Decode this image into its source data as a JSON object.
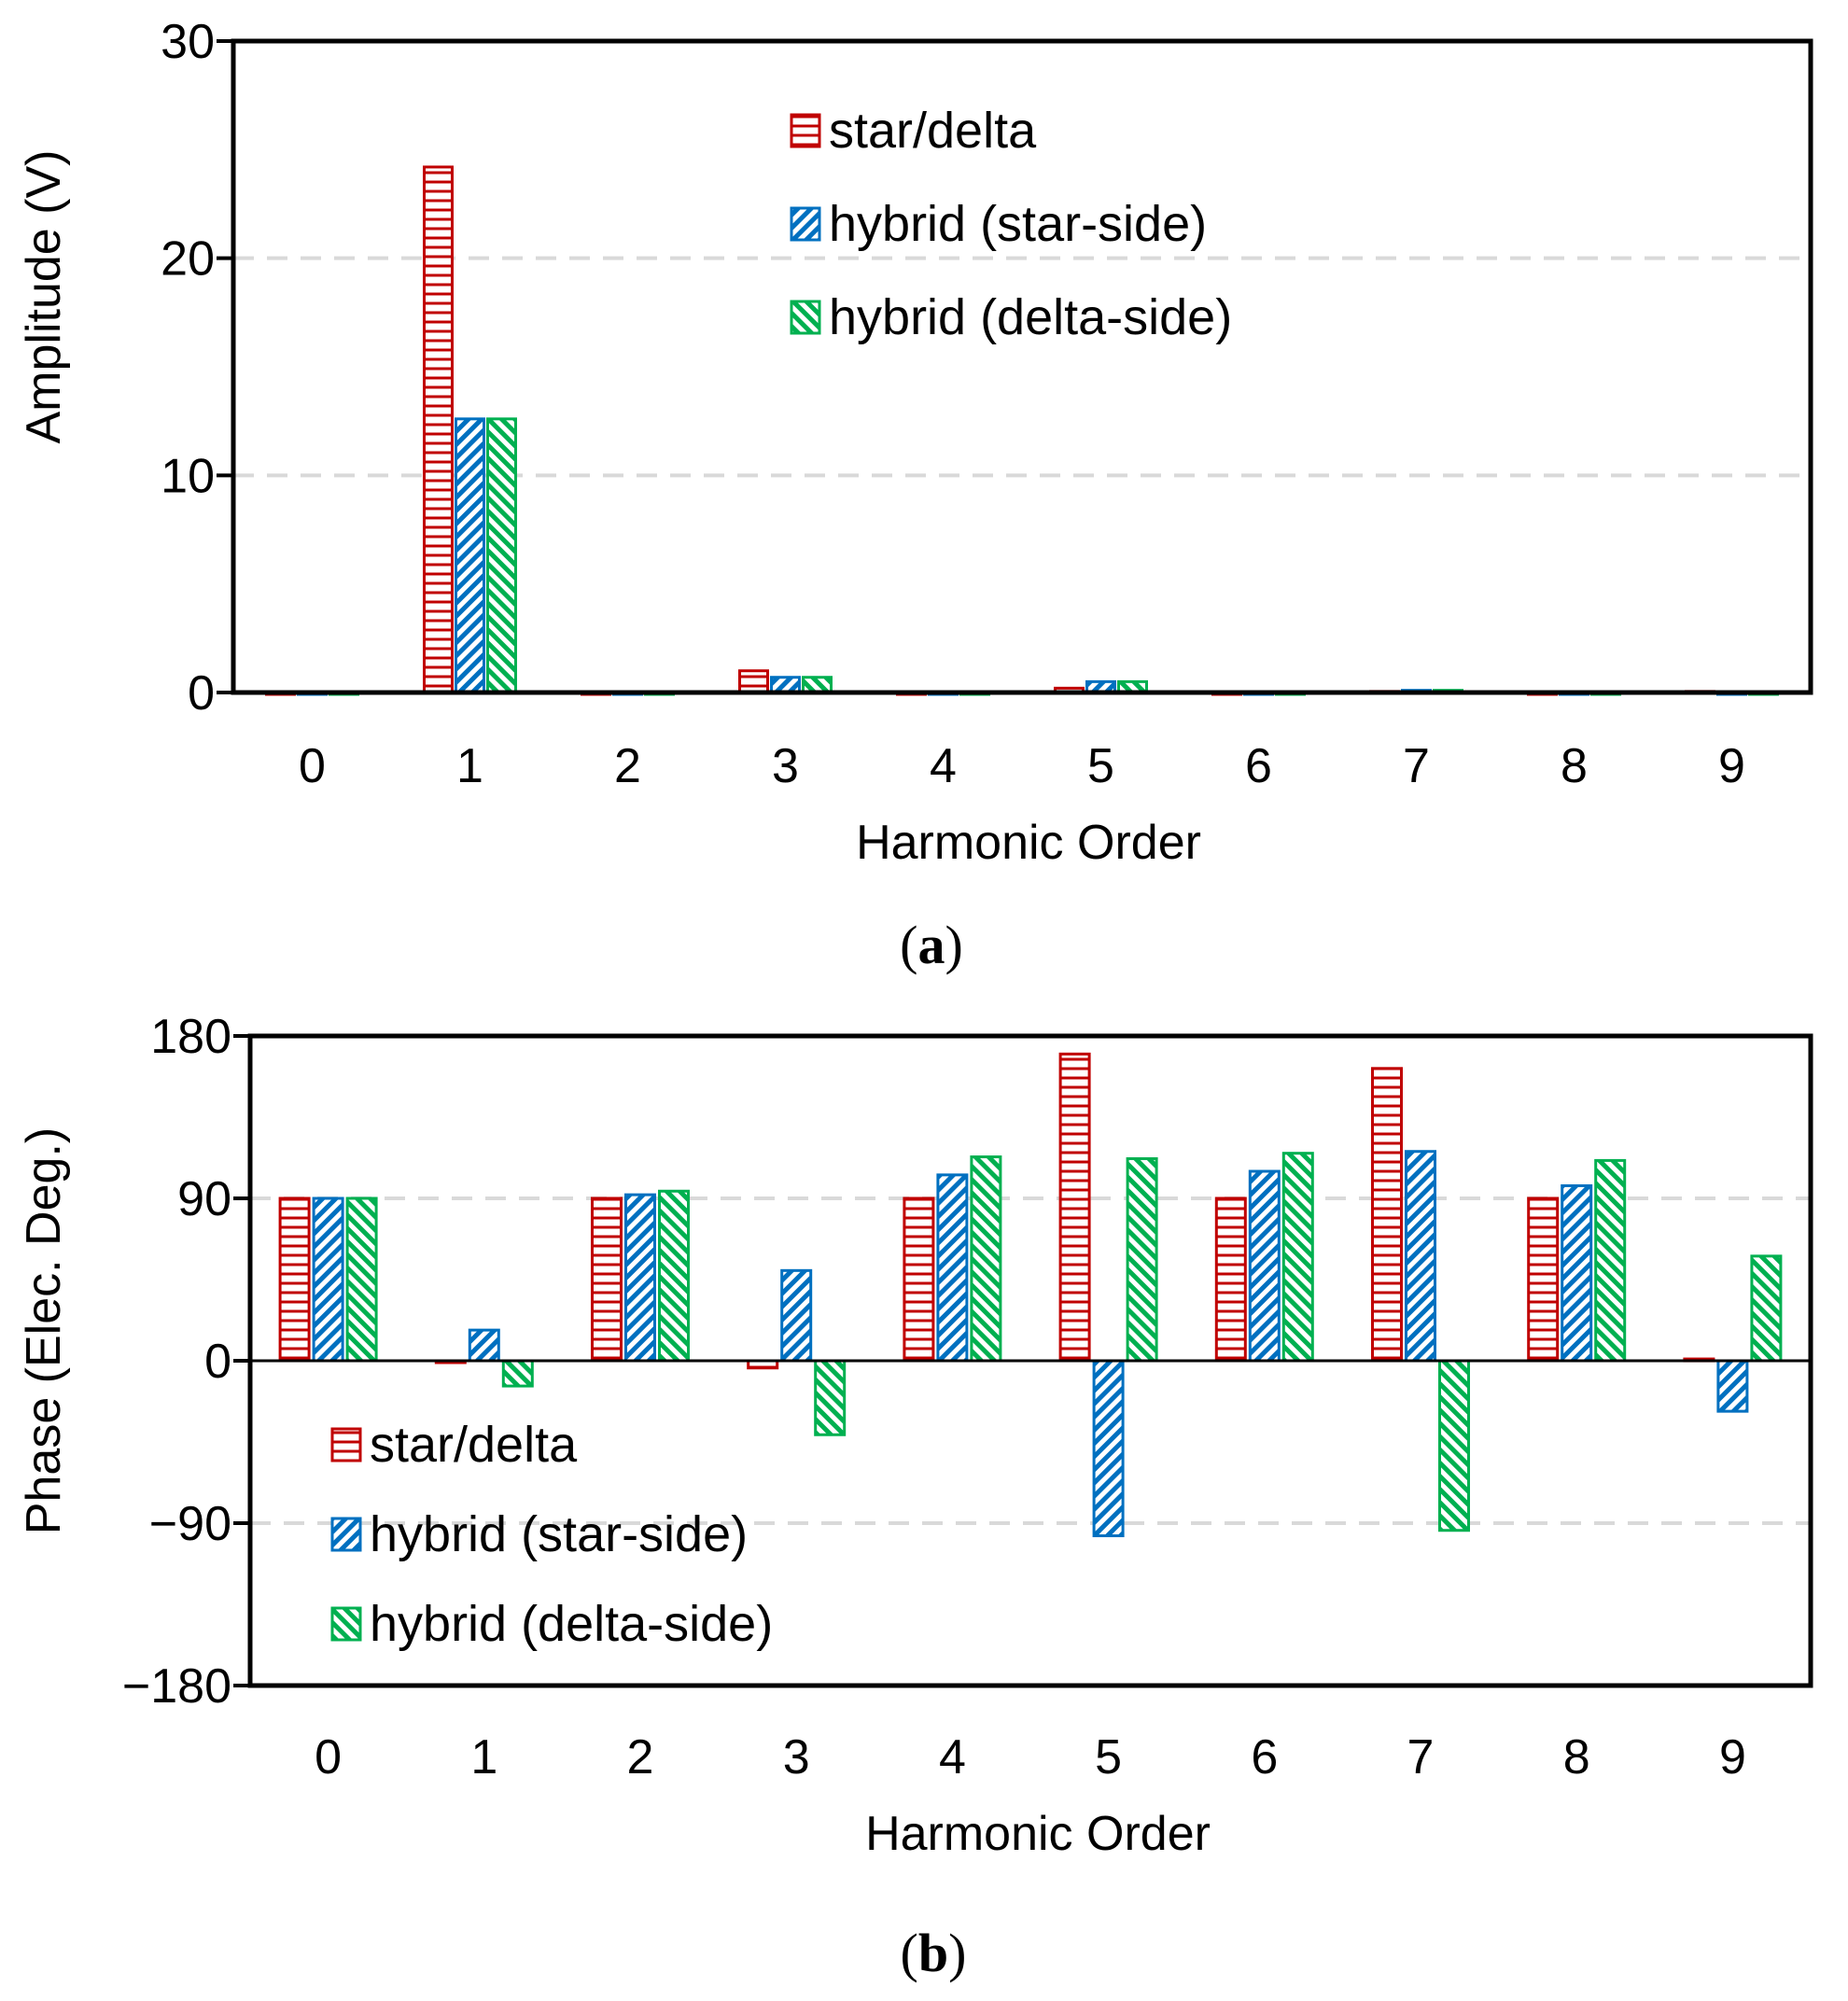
{
  "colors": {
    "star_delta": "#c00000",
    "hybrid_star": "#0070c0",
    "hybrid_delta": "#00b050",
    "grid": "#d9d9d9",
    "axis": "#000000"
  },
  "chart_data": [
    {
      "type": "bar",
      "panel_label": "a",
      "title": "",
      "xlabel": "Harmonic Order",
      "ylabel": "Amplitude (V)",
      "ylim": [
        0,
        30
      ],
      "yticks": [
        0,
        10,
        20,
        30
      ],
      "ytick_labels": [
        "0",
        "10",
        "20",
        "30"
      ],
      "grid": true,
      "legend_position": "top-center",
      "categories": [
        "0",
        "1",
        "2",
        "3",
        "4",
        "5",
        "6",
        "7",
        "8",
        "9"
      ],
      "series": [
        {
          "name": "star/delta",
          "pattern": "horizontal",
          "color": "#c00000",
          "values": [
            0,
            24.2,
            0,
            1.0,
            0,
            0.2,
            0,
            0.05,
            0,
            0.05
          ]
        },
        {
          "name": "hybrid (star-side)",
          "pattern": "diag-up",
          "color": "#0070c0",
          "values": [
            0,
            12.6,
            0,
            0.7,
            0,
            0.5,
            0,
            0.1,
            0,
            0
          ]
        },
        {
          "name": "hybrid (delta-side)",
          "pattern": "diag-down",
          "color": "#00b050",
          "values": [
            0,
            12.6,
            0,
            0.7,
            0,
            0.5,
            0,
            0.1,
            0,
            0
          ]
        }
      ]
    },
    {
      "type": "bar",
      "panel_label": "b",
      "title": "",
      "xlabel": "Harmonic Order",
      "ylabel": "Phase (Elec. Deg.)",
      "ylim": [
        -180,
        180
      ],
      "yticks": [
        -180,
        -90,
        0,
        90,
        180
      ],
      "ytick_labels": [
        "−180",
        "−90",
        "0",
        "90",
        "180"
      ],
      "grid": true,
      "legend_position": "bottom-left",
      "categories": [
        "0",
        "1",
        "2",
        "3",
        "4",
        "5",
        "6",
        "7",
        "8",
        "9"
      ],
      "series": [
        {
          "name": "star/delta",
          "pattern": "horizontal",
          "color": "#c00000",
          "values": [
            90,
            -1,
            90,
            -4,
            90,
            170,
            90,
            162,
            90,
            1
          ]
        },
        {
          "name": "hybrid (star-side)",
          "pattern": "diag-up",
          "color": "#0070c0",
          "values": [
            90,
            17,
            92,
            50,
            103,
            -97,
            105,
            116,
            97,
            -28
          ]
        },
        {
          "name": "hybrid (delta-side)",
          "pattern": "diag-down",
          "color": "#00b050",
          "values": [
            90,
            -14,
            94,
            -41,
            113,
            112,
            115,
            -94,
            111,
            58
          ]
        }
      ]
    }
  ]
}
